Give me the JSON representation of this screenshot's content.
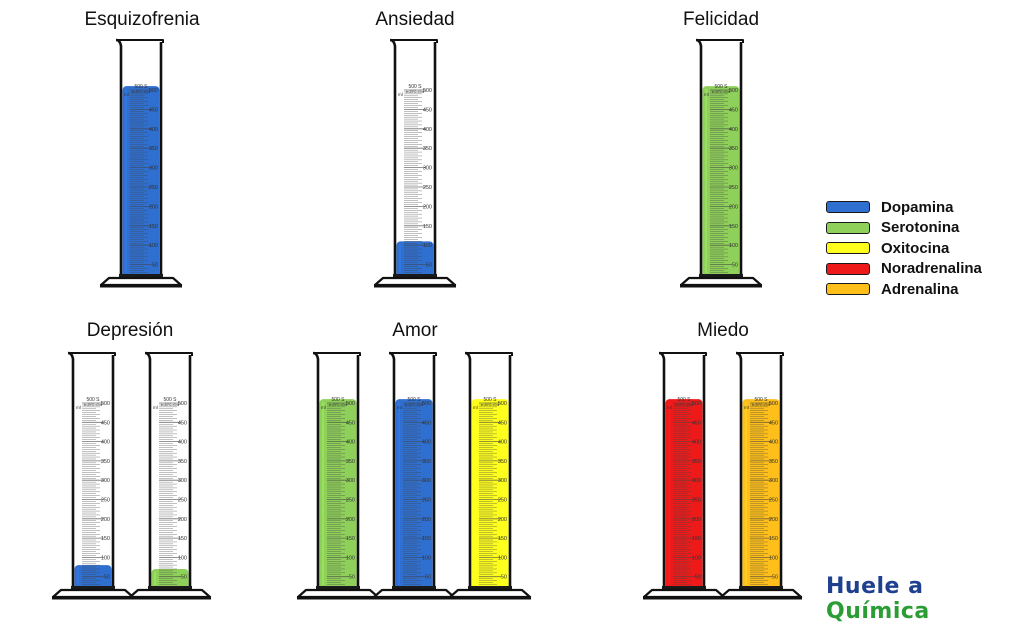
{
  "unit_label": "ml",
  "capacity_label": "500 S",
  "calibration_note": "In 20°C ±5ml",
  "scale_marks": [
    "50",
    "100",
    "150",
    "200",
    "250",
    "300",
    "350",
    "400",
    "450",
    "500"
  ],
  "legend": [
    {
      "label": "Dopamina",
      "color": "#2f6fd0"
    },
    {
      "label": "Serotonina",
      "color": "#8fd05a"
    },
    {
      "label": "Oxitocina",
      "color": "#ffff1e"
    },
    {
      "label": "Noradrenalina",
      "color": "#ee1a1a"
    },
    {
      "label": "Adrenalina",
      "color": "#ffbf1a"
    }
  ],
  "groups": [
    {
      "title": "Esquizofrenia",
      "cylinders": [
        {
          "substance": "Dopamina",
          "level_ml": 510
        }
      ]
    },
    {
      "title": "Ansiedad",
      "cylinders": [
        {
          "substance": "Dopamina",
          "level_ml": 110
        }
      ]
    },
    {
      "title": "Felicidad",
      "cylinders": [
        {
          "substance": "Serotonina",
          "level_ml": 510
        }
      ]
    },
    {
      "title": "Depresión",
      "cylinders": [
        {
          "substance": "Dopamina",
          "level_ml": 80
        },
        {
          "substance": "Serotonina",
          "level_ml": 70
        }
      ]
    },
    {
      "title": "Amor",
      "cylinders": [
        {
          "substance": "Serotonina",
          "level_ml": 510
        },
        {
          "substance": "Dopamina",
          "level_ml": 510
        },
        {
          "substance": "Oxitocina",
          "level_ml": 510
        }
      ]
    },
    {
      "title": "Miedo",
      "cylinders": [
        {
          "substance": "Noradrenalina",
          "level_ml": 510
        },
        {
          "substance": "Adrenalina",
          "level_ml": 510
        }
      ]
    }
  ],
  "brand": {
    "part1": "Huele a ",
    "part2": "Química"
  }
}
